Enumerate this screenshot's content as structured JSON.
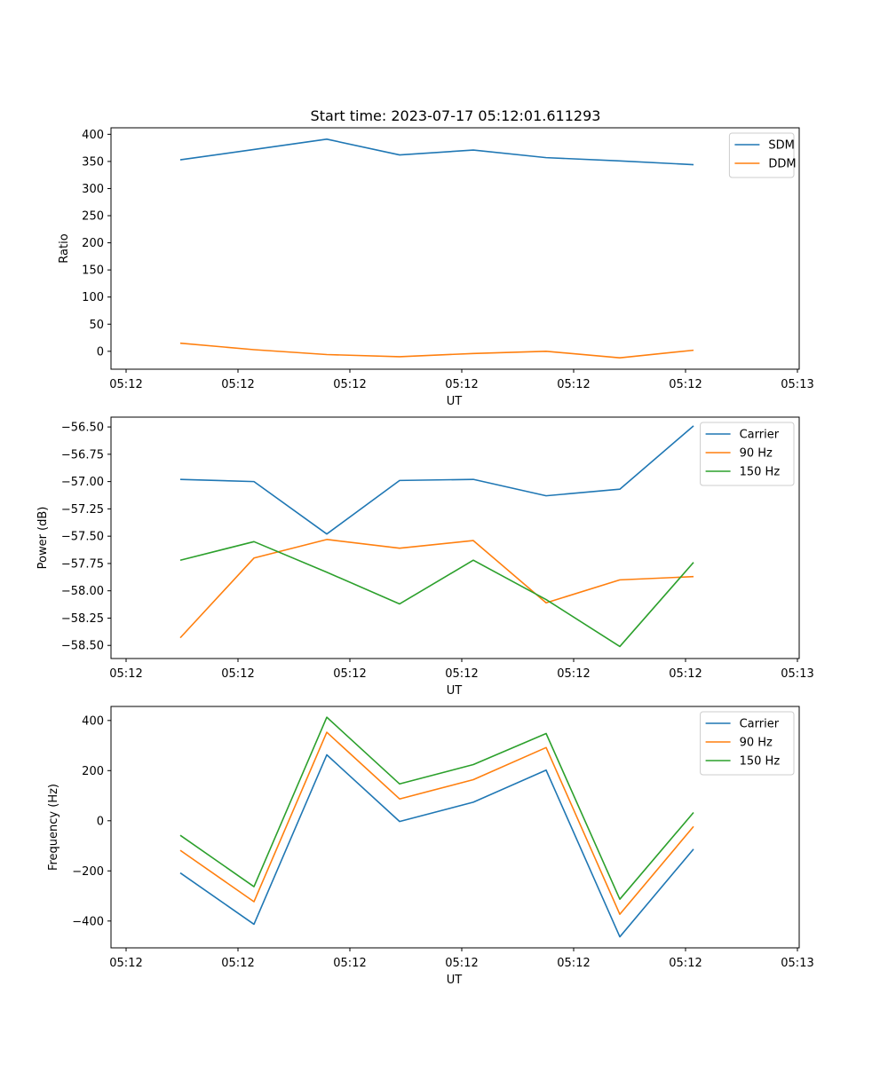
{
  "figure": {
    "title": "Start time: 2023-07-17 05:12:01.611293"
  },
  "chart_data": [
    {
      "type": "line",
      "title": "Start time: 2023-07-17 05:12:01.611293",
      "xlabel": "UT",
      "ylabel": "Ratio",
      "x_tick_labels": [
        "05:12",
        "05:12",
        "05:12",
        "05:12",
        "05:12",
        "05:12",
        "05:13"
      ],
      "ylim": [
        -33,
        412
      ],
      "y_ticks": [
        0,
        50,
        100,
        150,
        200,
        250,
        300,
        350,
        400
      ],
      "y_tick_labels": [
        "0",
        "50",
        "100",
        "150",
        "200",
        "250",
        "300",
        "350",
        "400"
      ],
      "legend_position": "top-right",
      "series": [
        {
          "name": "SDM",
          "color": "#1f77b4",
          "values": [
            353,
            372,
            391,
            362,
            371,
            357,
            351,
            344
          ]
        },
        {
          "name": "DDM",
          "color": "#ff7f0e",
          "values": [
            15,
            3,
            -6,
            -10,
            -4,
            0,
            -12,
            2
          ]
        }
      ]
    },
    {
      "type": "line",
      "title": "",
      "xlabel": "UT",
      "ylabel": "Power (dB)",
      "x_tick_labels": [
        "05:12",
        "05:12",
        "05:12",
        "05:12",
        "05:12",
        "05:12",
        "05:13"
      ],
      "ylim": [
        -58.62,
        -56.41
      ],
      "y_ticks": [
        -58.5,
        -58.25,
        -58.0,
        -57.75,
        -57.5,
        -57.25,
        -57.0,
        -56.75,
        -56.5
      ],
      "y_tick_labels": [
        "−58.50",
        "−58.25",
        "−58.00",
        "−57.75",
        "−57.50",
        "−57.25",
        "−57.00",
        "−56.75",
        "−56.50"
      ],
      "legend_position": "top-right",
      "series": [
        {
          "name": "Carrier",
          "color": "#1f77b4",
          "values": [
            -56.98,
            -57.0,
            -57.48,
            -56.99,
            -56.98,
            -57.13,
            -57.07,
            -56.49
          ]
        },
        {
          "name": "90 Hz",
          "color": "#ff7f0e",
          "values": [
            -58.43,
            -57.7,
            -57.53,
            -57.61,
            -57.54,
            -58.11,
            -57.9,
            -57.87
          ]
        },
        {
          "name": "150 Hz",
          "color": "#2ca02c",
          "values": [
            -57.72,
            -57.55,
            -57.83,
            -58.12,
            -57.72,
            -58.08,
            -58.51,
            -57.74
          ]
        }
      ]
    },
    {
      "type": "line",
      "title": "",
      "xlabel": "UT",
      "ylabel": "Frequency (Hz)",
      "x_tick_labels": [
        "05:12",
        "05:12",
        "05:12",
        "05:12",
        "05:12",
        "05:12",
        "05:13"
      ],
      "ylim": [
        -507,
        456
      ],
      "y_ticks": [
        -400,
        -200,
        0,
        200,
        400
      ],
      "y_tick_labels": [
        "−400",
        "−200",
        "0",
        "200",
        "400"
      ],
      "legend_position": "top-right",
      "series": [
        {
          "name": "Carrier",
          "color": "#1f77b4",
          "values": [
            -208,
            -413,
            263,
            -3,
            74,
            202,
            -463,
            -113
          ]
        },
        {
          "name": "90 Hz",
          "color": "#ff7f0e",
          "values": [
            -118,
            -323,
            353,
            87,
            164,
            292,
            -373,
            -23
          ]
        },
        {
          "name": "150 Hz",
          "color": "#2ca02c",
          "values": [
            -58,
            -263,
            413,
            147,
            224,
            348,
            -313,
            33
          ]
        }
      ]
    }
  ]
}
